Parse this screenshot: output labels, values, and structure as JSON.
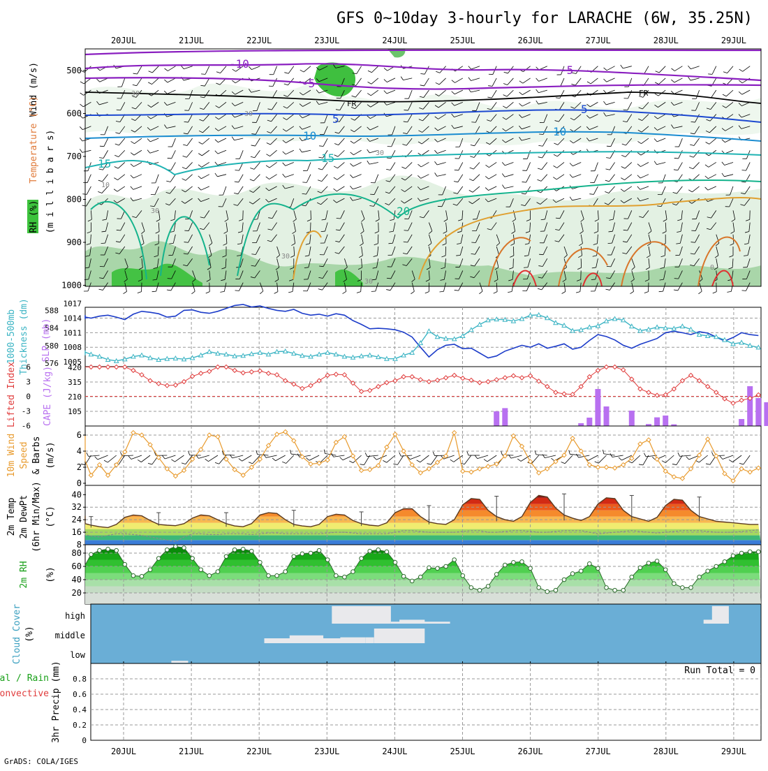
{
  "title": "GFS 0~10day 3-hourly for LARACHE (6W, 35.25N)",
  "footer": "GrADS: COLA/IGES",
  "dates": [
    "20JUL",
    "21JUL",
    "22JUL",
    "23JUL",
    "24JUL",
    "25JUL",
    "26JUL",
    "27JUL",
    "28JUL",
    "29JUL"
  ],
  "colors": {
    "rh_dark": "#1db31d",
    "rh_mid": "#8ecf8e",
    "rh_light": "#dcefdc",
    "slp": "#1c3cc9",
    "thickness": "#3bb4c4",
    "li": "#e03c3c",
    "cape": "#b870f0",
    "wind": "#e89a2c",
    "cloud": "#6aaed6",
    "cloud_fill": "#e9e9ec"
  },
  "panels": {
    "upper": {
      "ylabels": [
        "Wind (m/s)",
        "Temperature (°C)",
        "RH (%)",
        "(m i l l i b a r s)"
      ],
      "yticks": [
        500,
        600,
        700,
        800,
        900,
        1000
      ],
      "isotherm_labels": [
        "-10",
        "-5",
        "-5",
        "FR",
        "FR",
        "5",
        "5",
        "10",
        "10",
        "15",
        "15",
        "20"
      ],
      "rh_labels": [
        "30",
        "30",
        "30",
        "30",
        "30",
        "30",
        "10",
        "0"
      ]
    },
    "slp": {
      "ylabels": [
        "1000-500mb",
        "Thickness (dm)",
        "SLP (mb)"
      ],
      "thickness_ticks": [
        576,
        580,
        584,
        588
      ],
      "slp_ticks": [
        1005,
        1008,
        1011,
        1014,
        1017
      ],
      "slp_hidden": "1005"
    },
    "cape": {
      "ylabels": [
        "Lifted Index",
        "CAPE (J/kg)"
      ],
      "li_ticks": [
        "-6",
        "-3",
        "0",
        "3",
        "6"
      ],
      "cape_ticks": [
        105,
        210,
        315,
        420
      ]
    },
    "wind10m": {
      "ylabels": [
        "10m Wind",
        "Speed",
        "& Barbs",
        "(m/s)"
      ],
      "yticks": [
        0,
        2,
        4,
        6
      ]
    },
    "temp": {
      "ylabels": [
        "2m Temp",
        "2m DewPt",
        "(6hr Min/Max)",
        "(°C)"
      ],
      "yticks": [
        8,
        16,
        24,
        32,
        40
      ]
    },
    "rh2m": {
      "ylabels": [
        "2m RH",
        "(%)"
      ],
      "yticks": [
        20,
        40,
        60,
        80
      ]
    },
    "cloud": {
      "ylabels": [
        "Cloud Cover",
        "(%)"
      ],
      "levels": [
        "high",
        "middle",
        "low"
      ]
    },
    "precip": {
      "ylabels": [
        "Total / Rain",
        "Convective",
        "3hr Precip (mm)"
      ],
      "yticks": [
        "0",
        "0.2",
        "0.4",
        "0.6",
        "0.8"
      ],
      "run_total": "Run Total = 0"
    }
  },
  "chart_data": [
    {
      "type": "line",
      "panel": "slp-thickness",
      "x_unit": "3-hourly step from 19JUL 12Z",
      "series": [
        {
          "name": "SLP (mb)",
          "values": [
            1013.8,
            1014.3,
            1014.6,
            1014.2,
            1014.0,
            1014.4,
            1014.6,
            1014.2,
            1013.7,
            1014.8,
            1015.4,
            1015.2,
            1014.9,
            1014.2,
            1014.4,
            1015.6,
            1015.7,
            1015.2,
            1015.0,
            1015.4,
            1016.0,
            1016.6,
            1016.8,
            1016.3,
            1016.5,
            1016.0,
            1015.6,
            1015.4,
            1015.8,
            1015.0,
            1014.6,
            1014.8,
            1014.4,
            1014.9,
            1014.6,
            1013.5,
            1012.7,
            1011.8,
            1011.9,
            1011.8,
            1011.6,
            1011.1,
            1010.1,
            1008.0,
            1006.0,
            1007.5,
            1008.4,
            1008.6,
            1007.7,
            1007.8,
            1006.8,
            1005.8,
            1006.2,
            1007.2,
            1007.8,
            1008.4,
            1008.0,
            1008.7,
            1007.8,
            1008.2,
            1008.7,
            1007.6,
            1008.0,
            1009.4,
            1010.6,
            1010.2,
            1009.5,
            1008.4,
            1007.8,
            1008.6,
            1009.2,
            1009.8,
            1011.0,
            1011.3,
            1011.0,
            1010.6,
            1011.2,
            1010.9,
            1010.1,
            1009.3,
            1010.0,
            1011.0,
            1010.6,
            1010.4
          ]
        },
        {
          "name": "1000-500mb Thickness (dm)",
          "values": [
            577.8,
            578.4,
            578.9,
            578.5,
            578.0,
            577.5,
            576.8,
            576.5,
            576.9,
            577.5,
            577.8,
            577.2,
            576.8,
            577.0,
            577.1,
            576.9,
            577.2,
            577.8,
            578.6,
            578.2,
            578.0,
            577.6,
            577.7,
            578.1,
            578.4,
            578.0,
            578.6,
            578.7,
            578.2,
            577.7,
            577.5,
            578.0,
            578.4,
            578.0,
            577.5,
            577.3,
            577.6,
            577.8,
            577.4,
            577.0,
            577.0,
            577.8,
            578.4,
            580.6,
            583.3,
            582.0,
            581.6,
            581.5,
            582.2,
            583.6,
            584.8,
            585.8,
            586.0,
            585.9,
            585.6,
            586.1,
            586.9,
            587.0,
            586.3,
            585.2,
            584.6,
            583.4,
            583.6,
            584.2,
            584.5,
            585.6,
            586.1,
            585.8,
            584.4,
            583.4,
            583.7,
            584.2,
            584.0,
            583.9,
            584.4,
            583.7,
            582.5,
            582.2,
            582.0,
            581.3,
            580.4,
            580.7,
            580.0,
            579.6
          ]
        }
      ]
    },
    {
      "type": "line",
      "panel": "lifted-index",
      "series": [
        {
          "name": "Lifted Index",
          "values": [
            6,
            6,
            6,
            6,
            6,
            6,
            6,
            6,
            6,
            5.3,
            4.4,
            3.2,
            2.6,
            2.2,
            2.3,
            3.0,
            4.1,
            4.7,
            5.1,
            6,
            6,
            5.3,
            4.8,
            5.0,
            5.2,
            4.7,
            4.4,
            3.2,
            2.5,
            1.6,
            2.2,
            3.2,
            4.3,
            4.5,
            4.4,
            2.7,
            1.0,
            1.2,
            2.0,
            2.8,
            3.2,
            4.0,
            4.0,
            3.4,
            3.0,
            3.3,
            3.8,
            4.3,
            3.7,
            3.3,
            2.8,
            3.0,
            3.4,
            3.8,
            4.2,
            3.8,
            4.2,
            3.1,
            2.0,
            0.8,
            0.5,
            0.4,
            2.0,
            4.0,
            5.3,
            6,
            6,
            5.4,
            3.5,
            1.5,
            0.8,
            0.2,
            0.3,
            1.5,
            3.2,
            4.3,
            3.2,
            2.0,
            0.8,
            -0.5,
            -1.4,
            -0.8,
            -0.4,
            0.3
          ]
        }
      ]
    },
    {
      "type": "bar",
      "panel": "cape",
      "x_index": [
        52,
        53,
        62,
        63,
        64,
        65,
        68,
        70,
        71,
        72,
        73,
        81,
        82,
        83,
        84,
        85,
        86
      ],
      "values": [
        105,
        128,
        20,
        60,
        265,
        140,
        110,
        14,
        62,
        75,
        12,
        50,
        285,
        200,
        170,
        105,
        20
      ]
    },
    {
      "type": "line",
      "panel": "10m-wind-speed",
      "series": [
        {
          "name": "10m Wind Speed (m/s)",
          "values": [
            5.6,
            5.9,
            5.3,
            2.8,
            1.0,
            2.3,
            1.0,
            2.3,
            3.9,
            6.3,
            6.0,
            4.8,
            3.2,
            1.8,
            0.9,
            1.6,
            3.0,
            4.2,
            6.0,
            5.8,
            3.0,
            1.7,
            1.0,
            2.0,
            3.0,
            4.7,
            6.1,
            6.4,
            5.3,
            3.3,
            2.4,
            2.5,
            2.9,
            5.1,
            5.8,
            3.4,
            1.6,
            1.7,
            2.2,
            4.5,
            6.1,
            4.0,
            2.3,
            1.3,
            1.8,
            2.6,
            3.4,
            6.3,
            1.5,
            1.4,
            1.8,
            2.1,
            2.4,
            3.4,
            5.9,
            4.6,
            2.7,
            1.3,
            1.8,
            2.7,
            3.5,
            5.6,
            4.0,
            2.3,
            2.0,
            2.0,
            1.9,
            2.3,
            3.1,
            4.9,
            5.4,
            3.0,
            1.5,
            0.8,
            0.6,
            1.8,
            3.5,
            5.5,
            3.4,
            1.2,
            0.3,
            1.8,
            1.4,
            1.9
          ]
        }
      ]
    },
    {
      "type": "area",
      "panel": "2m-temp",
      "series": [
        {
          "name": "2m Temp (°C)",
          "values": [
            26.5,
            26.0,
            24.0,
            21.5,
            20.5,
            19.5,
            19.0,
            21.0,
            25.5,
            27.0,
            26.5,
            23.5,
            21.0,
            20.5,
            20.2,
            21.5,
            25.0,
            27.0,
            26.5,
            24.0,
            21.5,
            20.0,
            19.5,
            21.5,
            27.0,
            28.5,
            28.0,
            24.0,
            21.0,
            20.0,
            19.5,
            21.0,
            26.0,
            27.5,
            27.0,
            23.5,
            21.5,
            20.5,
            20.0,
            22.0,
            28.5,
            31.0,
            31.0,
            26.0,
            22.5,
            21.5,
            21.0,
            24.0,
            33.5,
            37.5,
            37.0,
            30.0,
            26.0,
            24.0,
            23.0,
            26.0,
            35.0,
            39.5,
            38.5,
            31.5,
            27.0,
            25.0,
            23.5,
            26.0,
            34.0,
            38.0,
            37.5,
            30.0,
            26.0,
            24.5,
            23.0,
            25.5,
            33.0,
            37.0,
            36.5,
            30.0,
            26.0,
            24.5,
            23.0,
            22.5,
            22.0,
            21.5,
            21.0,
            21.0
          ]
        },
        {
          "name": "2m DewPt (°C)",
          "values": [
            14.5,
            15.0,
            15.0,
            14.5,
            13.5,
            13.0,
            14.0,
            15.0,
            15.0,
            14.5,
            14.0,
            13.0,
            12.0,
            11.0,
            10.0,
            13.0,
            15.0,
            15.0,
            14.5,
            14.5,
            15.0,
            15.0,
            15.0,
            14.5,
            15.0,
            15.5,
            15.5,
            15.0,
            15.0,
            15.0,
            15.0,
            15.0,
            15.5,
            16.0,
            16.0,
            15.5,
            15.0,
            15.0,
            15.0,
            15.0,
            16.0,
            17.0,
            17.0,
            16.5,
            16.0,
            16.0,
            16.0,
            16.0,
            16.5,
            17.0,
            17.0,
            16.0,
            16.0,
            16.5,
            17.0,
            17.0,
            16.5,
            16.0,
            16.0,
            16.5,
            17.0,
            17.0,
            17.0,
            16.0,
            15.0,
            15.5,
            16.0,
            16.5,
            17.0,
            16.5,
            16.0,
            15.5,
            16.0,
            16.5,
            17.0,
            17.0,
            17.0,
            16.5,
            16.0,
            16.0,
            16.0,
            16.5,
            17.0,
            17.5
          ]
        }
      ]
    },
    {
      "type": "area",
      "panel": "2m-rh",
      "series": [
        {
          "name": "2m RH (%)",
          "values": [
            45,
            43,
            48,
            62,
            78,
            84,
            86,
            84,
            63,
            46,
            45,
            55,
            72,
            85,
            90,
            88,
            72,
            55,
            46,
            52,
            75,
            85,
            86,
            83,
            66,
            46,
            46,
            52,
            75,
            79,
            80,
            84,
            70,
            46,
            44,
            52,
            72,
            83,
            85,
            82,
            66,
            45,
            38,
            44,
            58,
            57,
            60,
            70,
            46,
            28,
            24,
            30,
            48,
            62,
            66,
            67,
            57,
            28,
            22,
            24,
            40,
            49,
            53,
            64,
            57,
            28,
            24,
            24,
            44,
            58,
            65,
            68,
            55,
            34,
            28,
            28,
            44,
            53,
            60,
            67,
            76,
            80,
            82,
            82
          ]
        }
      ]
    },
    {
      "type": "table",
      "panel": "cloud-cover",
      "columns": [
        "layer",
        "from_step",
        "to_step",
        "percent"
      ],
      "rows": [
        [
          "mid",
          25,
          34,
          25
        ],
        [
          "mid",
          28,
          31,
          40
        ],
        [
          "mid",
          34,
          36,
          30
        ],
        [
          "mid",
          37,
          37,
          30
        ],
        [
          "mid",
          38,
          43,
          75
        ],
        [
          "high",
          33,
          39,
          90
        ],
        [
          "high",
          40,
          41,
          10
        ],
        [
          "high",
          41,
          43,
          20
        ],
        [
          "high",
          43,
          46,
          10
        ],
        [
          "high",
          77,
          79,
          20
        ],
        [
          "high",
          78,
          79,
          90
        ],
        [
          "low",
          14,
          15,
          10
        ]
      ]
    },
    {
      "type": "bar",
      "panel": "3hr-precip",
      "values": [],
      "ylim": [
        0,
        1
      ]
    }
  ]
}
